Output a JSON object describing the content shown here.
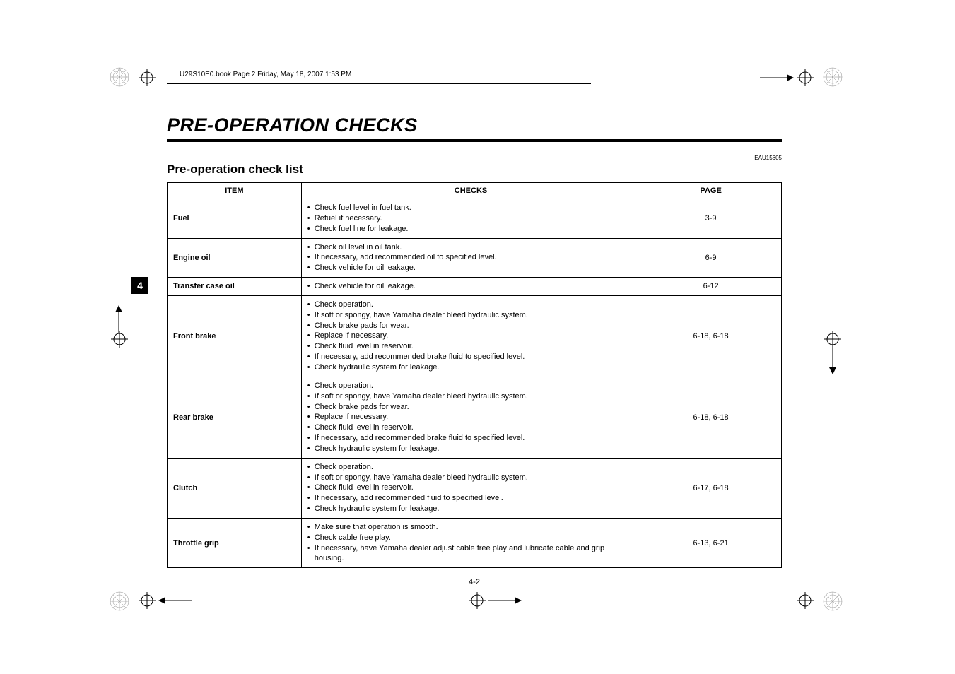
{
  "book_header": "U29S10E0.book  Page 2  Friday, May 18, 2007  1:53 PM",
  "main_title": "PRE-OPERATION CHECKS",
  "eau_code": "EAU15605",
  "section_title": "Pre-operation check list",
  "page_tab": "4",
  "page_number": "4-2",
  "table": {
    "headers": {
      "item": "ITEM",
      "checks": "CHECKS",
      "page": "PAGE"
    },
    "rows": [
      {
        "item": "Fuel",
        "checks": [
          "Check fuel level in fuel tank.",
          "Refuel if necessary.",
          "Check fuel line for leakage."
        ],
        "page": "3-9"
      },
      {
        "item": "Engine oil",
        "checks": [
          "Check oil level in oil tank.",
          "If necessary, add recommended oil to specified level.",
          "Check vehicle for oil leakage."
        ],
        "page": "6-9"
      },
      {
        "item": "Transfer case oil",
        "checks": [
          "Check vehicle for oil leakage."
        ],
        "page": "6-12"
      },
      {
        "item": "Front brake",
        "checks": [
          "Check operation.",
          "If soft or spongy, have Yamaha dealer bleed hydraulic system.",
          "Check brake pads for wear.",
          "Replace if necessary.",
          "Check fluid level in reservoir.",
          "If necessary, add recommended brake fluid to specified level.",
          "Check hydraulic system for leakage."
        ],
        "page": "6-18, 6-18"
      },
      {
        "item": "Rear brake",
        "checks": [
          "Check operation.",
          "If soft or spongy, have Yamaha dealer bleed hydraulic system.",
          "Check brake pads for wear.",
          "Replace if necessary.",
          "Check fluid level in reservoir.",
          "If necessary, add recommended brake fluid to specified level.",
          "Check hydraulic system for leakage."
        ],
        "page": "6-18, 6-18"
      },
      {
        "item": "Clutch",
        "checks": [
          "Check operation.",
          "If soft or spongy, have Yamaha dealer bleed hydraulic system.",
          "Check fluid level in reservoir.",
          "If necessary, add recommended fluid to specified level.",
          "Check hydraulic system for leakage."
        ],
        "page": "6-17, 6-18"
      },
      {
        "item": "Throttle grip",
        "checks": [
          "Make sure that operation is smooth.",
          "Check cable free play.",
          "If necessary, have Yamaha dealer adjust cable free play and lubricate cable and grip housing."
        ],
        "page": "6-13, 6-21"
      }
    ]
  },
  "colors": {
    "black": "#000000",
    "white": "#ffffff"
  }
}
